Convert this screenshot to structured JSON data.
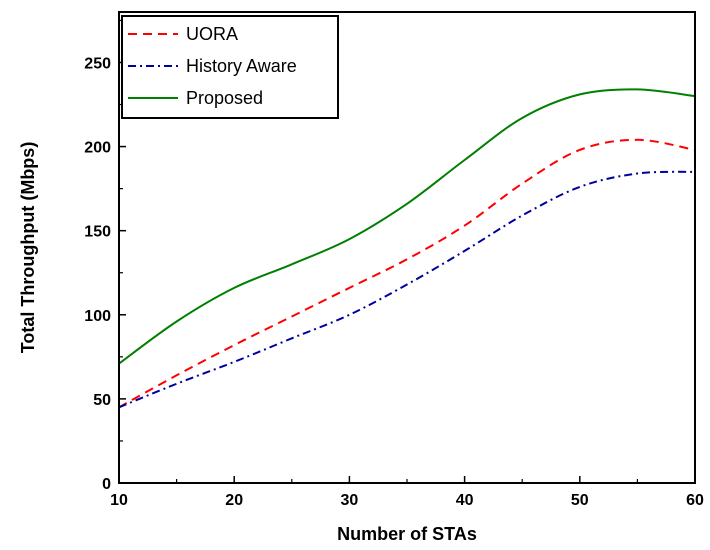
{
  "chart_data": {
    "type": "line",
    "title": "",
    "xlabel": "Number of STAs",
    "ylabel": "Total Throughput (Mbps)",
    "xlim": [
      10,
      60
    ],
    "ylim": [
      0,
      280
    ],
    "xticks": [
      10,
      20,
      30,
      40,
      50,
      60
    ],
    "yticks": [
      0,
      50,
      100,
      150,
      200,
      250
    ],
    "legend_position": "top-left",
    "grid": false,
    "series": [
      {
        "name": "UORA",
        "color": "#ff0000",
        "style": "dashed",
        "x": [
          10,
          15,
          20,
          25,
          30,
          35,
          40,
          45,
          50,
          55,
          60
        ],
        "y": [
          45,
          64,
          82,
          99,
          116,
          133,
          153,
          178,
          198,
          204,
          198
        ]
      },
      {
        "name": "History Aware",
        "color": "#0000a0",
        "style": "dashdot",
        "x": [
          10,
          15,
          20,
          25,
          30,
          35,
          40,
          45,
          50,
          55,
          60
        ],
        "y": [
          45,
          59,
          72,
          86,
          100,
          118,
          138,
          159,
          176,
          184,
          185
        ]
      },
      {
        "name": "Proposed",
        "color": "#008000",
        "style": "solid",
        "x": [
          10,
          15,
          20,
          25,
          30,
          35,
          40,
          45,
          50,
          55,
          60
        ],
        "y": [
          71,
          96,
          116,
          130,
          145,
          166,
          192,
          217,
          231,
          234,
          230
        ]
      }
    ]
  }
}
